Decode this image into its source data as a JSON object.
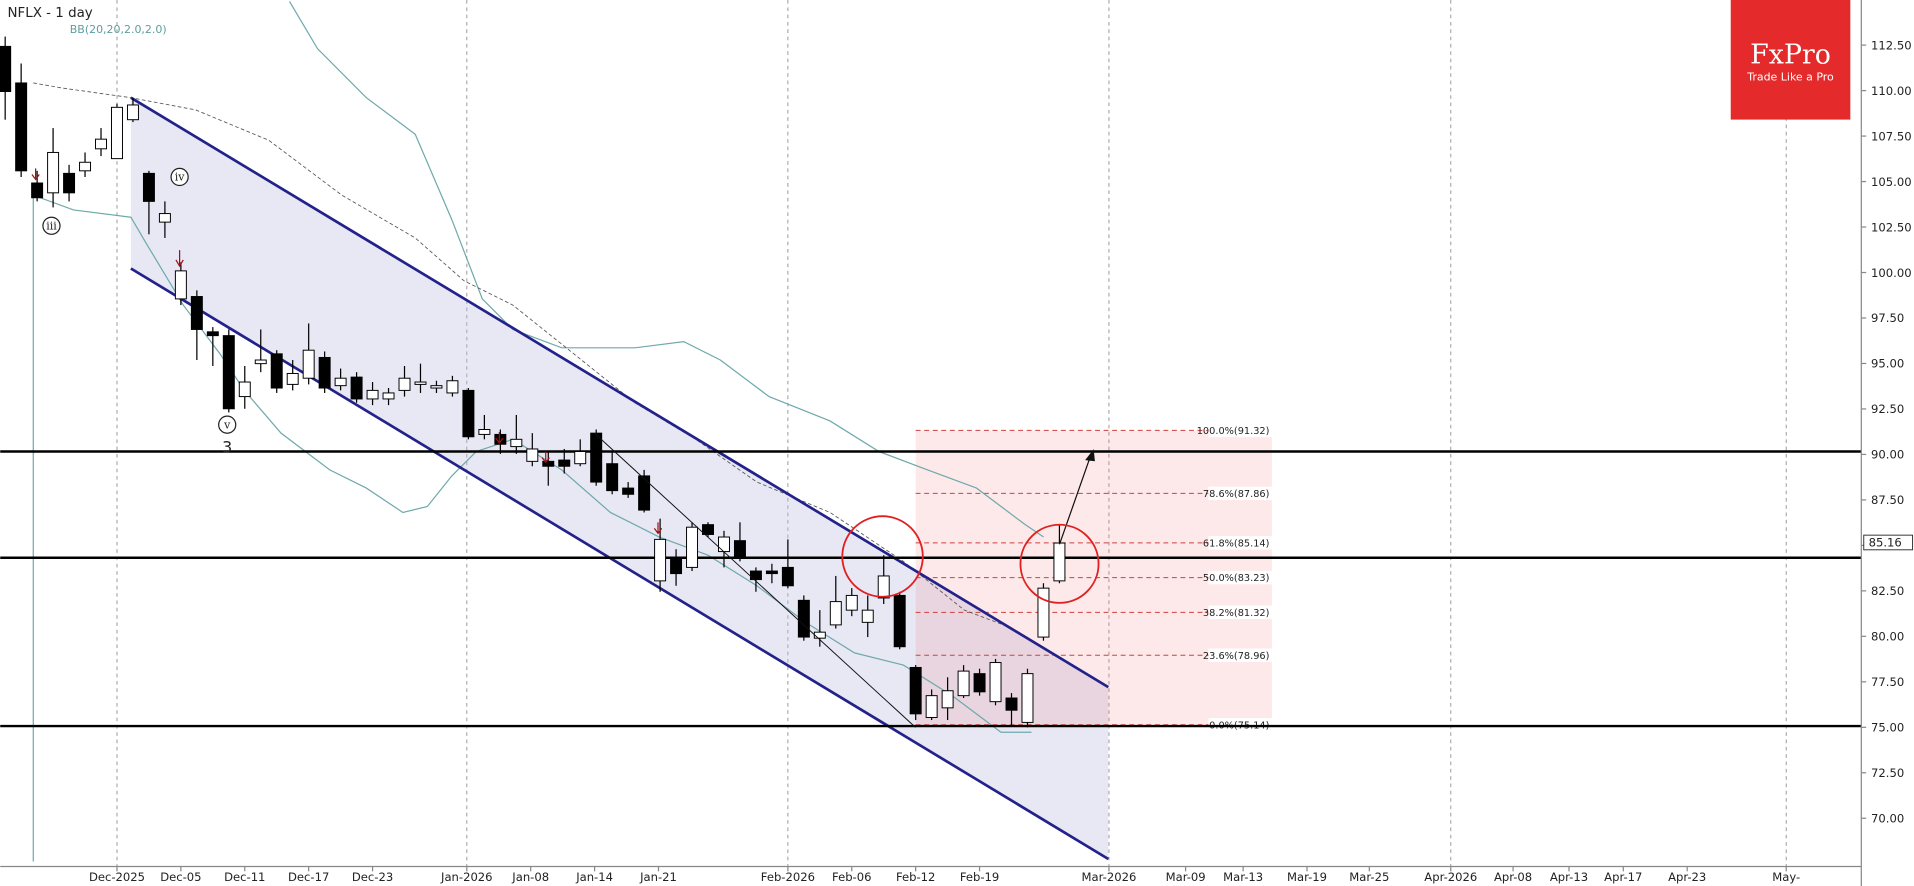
{
  "chart_data": {
    "type": "candlestick",
    "title": "NFLX - 1 day",
    "indicator": "BB(20,20,2.0,2.0)",
    "logo": {
      "name": "FxPro",
      "tagline": "Trade Like a Pro"
    },
    "xlim": [
      -0.31,
      116.2
    ],
    "ylim": [
      67.35,
      114.98
    ],
    "yticks": [
      {
        "value": 70,
        "label": "70.00"
      },
      {
        "value": 72.5,
        "label": "72.50"
      },
      {
        "value": 75,
        "label": "75.00"
      },
      {
        "value": 77.5,
        "label": "77.50"
      },
      {
        "value": 80,
        "label": "80.00"
      },
      {
        "value": 82.5,
        "label": "82.50"
      },
      {
        "value": 85,
        "label": "85.00"
      },
      {
        "value": 87.5,
        "label": "87.50"
      },
      {
        "value": 90,
        "label": "90.00"
      },
      {
        "value": 92.5,
        "label": "92.50"
      },
      {
        "value": 95,
        "label": "95.00"
      },
      {
        "value": 97.5,
        "label": "97.50"
      },
      {
        "value": 100,
        "label": "100.00"
      },
      {
        "value": 102.5,
        "label": "102.50"
      },
      {
        "value": 105,
        "label": "105.00"
      },
      {
        "value": 107.5,
        "label": "107.50"
      },
      {
        "value": 110,
        "label": "110.00"
      },
      {
        "value": 112.5,
        "label": "112.50"
      }
    ],
    "xticks": [
      {
        "value": 7,
        "label": "Dec-2025"
      },
      {
        "value": 11,
        "label": "Dec-05"
      },
      {
        "value": 15,
        "label": "Dec-11"
      },
      {
        "value": 19,
        "label": "Dec-17"
      },
      {
        "value": 23,
        "label": "Dec-23"
      },
      {
        "value": 28.9,
        "label": "Jan-2026"
      },
      {
        "value": 32.9,
        "label": "Jan-08"
      },
      {
        "value": 36.9,
        "label": "Jan-14"
      },
      {
        "value": 40.9,
        "label": "Jan-21"
      },
      {
        "value": 49,
        "label": "Feb-2026"
      },
      {
        "value": 53,
        "label": "Feb-06"
      },
      {
        "value": 57,
        "label": "Feb-12"
      },
      {
        "value": 61,
        "label": "Feb-19"
      },
      {
        "value": 69.1,
        "label": "Mar-2026"
      },
      {
        "value": 73.9,
        "label": "Mar-09"
      },
      {
        "value": 77.5,
        "label": "Mar-13"
      },
      {
        "value": 81.5,
        "label": "Mar-19"
      },
      {
        "value": 85.4,
        "label": "Mar-25"
      },
      {
        "value": 90.5,
        "label": "Apr-2026"
      },
      {
        "value": 94.4,
        "label": "Apr-08"
      },
      {
        "value": 97.9,
        "label": "Apr-13"
      },
      {
        "value": 101.3,
        "label": "Apr-17"
      },
      {
        "value": 105.3,
        "label": "Apr-23"
      },
      {
        "value": 111.5,
        "label": "May-"
      }
    ],
    "last_price": 85.16,
    "ohlc": [
      [
        112.43,
        112.97,
        108.4,
        109.95
      ],
      [
        110.42,
        111.49,
        105.25,
        105.59
      ],
      [
        104.92,
        105.59,
        103.91,
        104.11
      ],
      [
        104.38,
        107.94,
        103.58,
        106.6
      ],
      [
        105.45,
        105.92,
        103.91,
        104.38
      ],
      [
        105.59,
        106.6,
        105.25,
        106.06
      ],
      [
        106.8,
        107.94,
        106.4,
        107.33
      ],
      [
        106.26,
        109.28,
        106.26,
        109.08
      ],
      [
        108.4,
        109.61,
        108.27,
        109.21
      ],
      [
        105.45,
        105.59,
        102.1,
        103.91
      ],
      [
        102.77,
        103.91,
        101.9,
        103.24
      ],
      [
        98.55,
        100.56,
        98.21,
        100.09
      ],
      [
        98.68,
        99.02,
        95.19,
        96.87
      ],
      [
        96.74,
        97.0,
        94.86,
        96.53
      ],
      [
        96.53,
        96.87,
        92.31,
        92.51
      ],
      [
        93.18,
        94.86,
        92.51,
        93.98
      ],
      [
        94.99,
        96.87,
        94.52,
        95.19
      ],
      [
        95.53,
        95.73,
        93.38,
        93.65
      ],
      [
        93.85,
        95.19,
        93.52,
        94.45
      ],
      [
        94.19,
        97.2,
        93.85,
        95.73
      ],
      [
        95.33,
        95.66,
        93.38,
        93.65
      ],
      [
        93.78,
        94.72,
        93.52,
        94.19
      ],
      [
        94.25,
        94.52,
        92.84,
        93.05
      ],
      [
        93.05,
        93.98,
        92.71,
        93.52
      ],
      [
        93.05,
        93.65,
        92.71,
        93.38
      ],
      [
        93.52,
        94.86,
        93.18,
        94.19
      ],
      [
        93.85,
        94.99,
        93.38,
        93.98
      ],
      [
        93.65,
        94.05,
        93.38,
        93.78
      ],
      [
        93.38,
        94.32,
        93.18,
        94.05
      ],
      [
        93.52,
        93.65,
        90.83,
        90.97
      ],
      [
        91.1,
        92.17,
        90.83,
        91.37
      ],
      [
        91.1,
        91.37,
        90.03,
        90.56
      ],
      [
        90.43,
        92.17,
        90.03,
        90.83
      ],
      [
        89.62,
        91.17,
        89.35,
        90.3
      ],
      [
        89.62,
        90.16,
        88.28,
        89.35
      ],
      [
        89.69,
        90.3,
        88.95,
        89.35
      ],
      [
        89.49,
        90.83,
        89.35,
        90.16
      ],
      [
        91.17,
        91.37,
        88.28,
        88.48
      ],
      [
        89.49,
        90.16,
        87.81,
        88.01
      ],
      [
        88.15,
        88.48,
        87.61,
        87.81
      ],
      [
        88.82,
        89.15,
        86.81,
        86.94
      ],
      [
        83.05,
        86.47,
        82.45,
        85.33
      ],
      [
        84.26,
        84.79,
        82.78,
        83.45
      ],
      [
        83.79,
        86.27,
        83.59,
        86.0
      ],
      [
        86.14,
        86.27,
        85.46,
        85.6
      ],
      [
        84.66,
        85.8,
        83.79,
        85.46
      ],
      [
        85.26,
        86.27,
        84.12,
        84.39
      ],
      [
        83.59,
        83.79,
        82.45,
        83.12
      ],
      [
        83.59,
        83.99,
        82.92,
        83.45
      ],
      [
        83.79,
        85.33,
        82.65,
        82.78
      ],
      [
        81.98,
        82.25,
        79.76,
        79.96
      ],
      [
        79.9,
        81.44,
        79.43,
        80.23
      ],
      [
        80.63,
        83.32,
        80.43,
        81.91
      ],
      [
        81.44,
        82.65,
        81.11,
        82.25
      ],
      [
        80.77,
        82.25,
        79.96,
        81.44
      ],
      [
        82.11,
        84.46,
        81.78,
        83.32
      ],
      [
        82.25,
        82.45,
        79.29,
        79.43
      ],
      [
        78.29,
        78.42,
        75.4,
        75.74
      ],
      [
        75.54,
        77.08,
        75.4,
        76.74
      ],
      [
        76.07,
        77.75,
        75.4,
        77.01
      ],
      [
        76.74,
        78.42,
        76.61,
        78.09
      ],
      [
        77.95,
        78.22,
        76.74,
        76.95
      ],
      [
        76.41,
        78.76,
        76.21,
        78.56
      ],
      [
        76.61,
        76.88,
        75.07,
        75.94
      ],
      [
        75.27,
        78.22,
        75.0,
        77.95
      ],
      [
        79.96,
        82.92,
        79.76,
        82.65
      ],
      [
        83.05,
        86.14,
        82.92,
        85.13
      ]
    ],
    "bollinger": {
      "color": "#6fa9ab",
      "upper": {
        "x": [
          17.8,
          19.56,
          22.61,
          25.67,
          27.96,
          29.87,
          31.78,
          34.84,
          39.42,
          42.48,
          44.77,
          47.82,
          51.64,
          54.7,
          57.75,
          60.81,
          63.86,
          65.01
        ],
        "values": [
          114.9,
          112.3,
          109.61,
          107.6,
          102.91,
          98.55,
          96.87,
          95.86,
          95.86,
          96.2,
          95.19,
          93.18,
          91.84,
          90.16,
          89.15,
          88.15,
          86.14,
          85.46
        ]
      },
      "middle": {
        "x": [
          1.76,
          3.51,
          7.87,
          11.92,
          16.5,
          21.08,
          25.67,
          28.72,
          31.78,
          35.6,
          39.42,
          43.24,
          47.06,
          51.64,
          56.23,
          60.05,
          63.1
        ],
        "values": [
          110.42,
          110.15,
          109.61,
          108.94,
          107.27,
          104.25,
          101.9,
          99.55,
          98.21,
          95.53,
          92.84,
          90.83,
          88.48,
          86.81,
          84.12,
          81.44,
          80.43
        ]
      },
      "lower": {
        "x": [
          1.76,
          1.76,
          4.28,
          7.87,
          8.86,
          11.15,
          13.45,
          14.97,
          17.27,
          20.32,
          22.61,
          24.9,
          26.43,
          27.96,
          29.49,
          31.78,
          34.84,
          37.89,
          40.95,
          44.0,
          47.06,
          50.11,
          53.17,
          56.23,
          59.28,
          62.34,
          64.25
        ],
        "values": [
          67.62,
          104.25,
          103.44,
          103.04,
          101.56,
          98.21,
          95.53,
          93.52,
          91.17,
          89.15,
          88.15,
          86.81,
          87.14,
          88.82,
          90.16,
          90.83,
          89.15,
          86.81,
          85.46,
          84.46,
          82.78,
          80.77,
          79.09,
          78.42,
          76.74,
          74.73,
          74.73
        ]
      }
    },
    "channel": {
      "color": "#22228a",
      "x": [
        7.87,
        69.06
      ],
      "upper": [
        109.61,
        77.21
      ],
      "lower": [
        100.22,
        67.76
      ]
    },
    "levels": [
      90.16,
      84.32,
      75.07
    ],
    "fib": {
      "x": [
        57,
        79.3
      ],
      "levels": [
        {
          "value": 91.32,
          "label": "100.0%(91.32)"
        },
        {
          "value": 87.86,
          "label": "78.6%(87.86)"
        },
        {
          "value": 85.14,
          "label": "61.8%(85.14)"
        },
        {
          "value": 83.23,
          "label": "50.0%(83.23)"
        },
        {
          "value": 81.32,
          "label": "38.2%(81.32)"
        },
        {
          "value": 78.96,
          "label": "23.6%(78.96)"
        },
        {
          "value": 75.14,
          "label": "0.0%(75.14)"
        }
      ]
    },
    "annotations": [
      "iii",
      "iv",
      "v",
      "3"
    ]
  }
}
